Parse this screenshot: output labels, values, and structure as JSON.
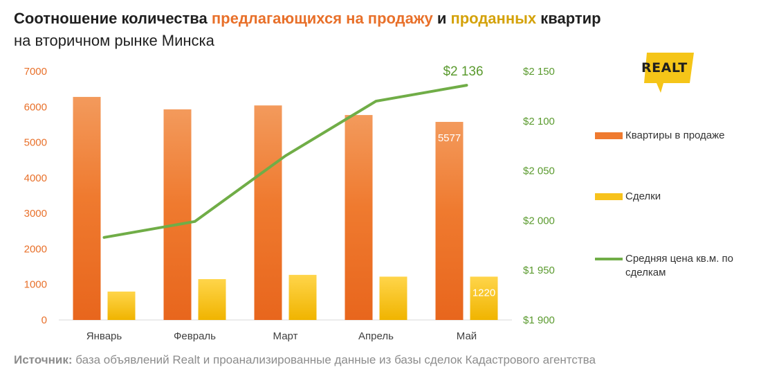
{
  "header": {
    "title_part1": "Соотношение количества ",
    "title_highlight1": "предлагающихся на продажу",
    "title_part2": " и ",
    "title_highlight2": "проданных",
    "title_part3": " квартир",
    "subtitle": "на вторичном рынке Минска"
  },
  "logo": {
    "text": "REALT",
    "accent_color": "#f5c518"
  },
  "source": {
    "label": "Источник:",
    "text": " база объявлений Realt и проанализированные данные из базы сделок Кадастрового агентства"
  },
  "chart_data": {
    "type": "bar",
    "categories": [
      "Январь",
      "Февраль",
      "Март",
      "Апрель",
      "Май"
    ],
    "series": [
      {
        "name": "Квартиры в продаже",
        "type": "bar",
        "axis": "left",
        "color": "#ef7a2f",
        "values": [
          6280,
          5930,
          6040,
          5770,
          5577
        ]
      },
      {
        "name": "Сделки",
        "type": "bar",
        "axis": "left",
        "color": "#f7c21c",
        "values": [
          800,
          1150,
          1270,
          1220,
          1220
        ]
      },
      {
        "name": "Средняя цена кв.м. по сделкам",
        "type": "line",
        "axis": "right",
        "color": "#70ad47",
        "values": [
          1983,
          1999,
          2065,
          2120,
          2136
        ]
      }
    ],
    "data_labels": [
      {
        "series": 0,
        "index": 4,
        "text": "5577"
      },
      {
        "series": 1,
        "index": 4,
        "text": "1220"
      },
      {
        "series": 2,
        "index": 4,
        "text": "$2 136"
      }
    ],
    "y_left": {
      "min": 0,
      "max": 7000,
      "ticks": [
        0,
        1000,
        2000,
        3000,
        4000,
        5000,
        6000,
        7000
      ],
      "tick_labels": [
        "0",
        "1000",
        "2000",
        "3000",
        "4000",
        "5000",
        "6000",
        "7000"
      ],
      "color": "#e8702a"
    },
    "y_right": {
      "min": 1900,
      "max": 2150,
      "ticks": [
        1900,
        1950,
        2000,
        2050,
        2100,
        2150
      ],
      "tick_labels": [
        "$1 900",
        "$1 950",
        "$2 000",
        "$2 050",
        "$2 100",
        "$2 150"
      ],
      "color": "#5a9a2e"
    },
    "grid": false,
    "legend_position": "right"
  }
}
